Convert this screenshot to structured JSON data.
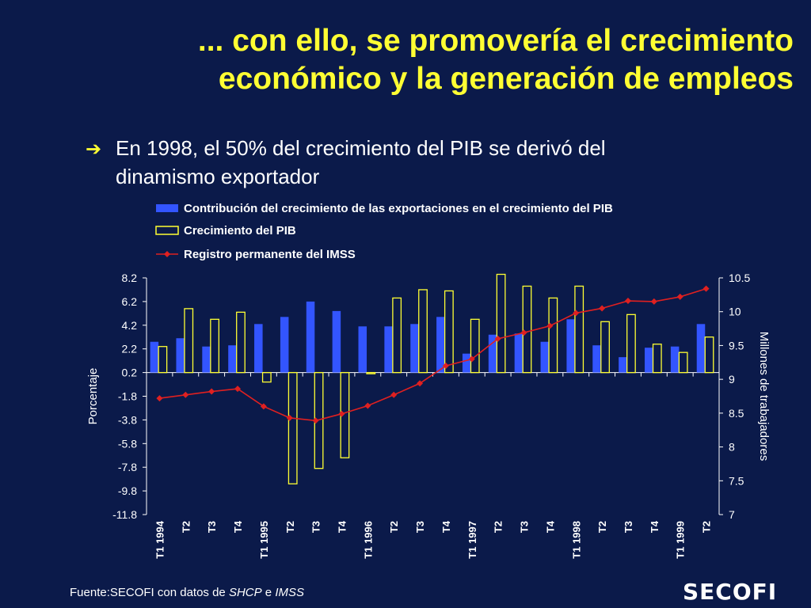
{
  "slide": {
    "title_line1": "... con ello, se promovería el crecimiento",
    "title_line2": "económico y la generación de empleos",
    "bullet_line1": "En 1998, el 50% del crecimiento del PIB se derivó del",
    "bullet_line2": "dinamismo exportador",
    "source_prefix": "Fuente:SECOFI  con datos de  ",
    "source_shcp": "SHCP",
    "source_and": " e ",
    "source_imss": "IMSS",
    "logo": "SECOFI"
  },
  "chart_data": {
    "type": "bar",
    "categories": [
      "T1 1994",
      "T2",
      "T3",
      "T4",
      "T1 1995",
      "T2",
      "T3",
      "T4",
      "T1 1996",
      "T2",
      "T3",
      "T4",
      "T1 1997",
      "T2",
      "T3",
      "T4",
      "T1 1998",
      "T2",
      "T3",
      "T4",
      "T1 1999",
      "T2"
    ],
    "series": [
      {
        "name": "Contribución del crecimiento de las exportaciones en el crecimiento del PIB",
        "kind": "bar",
        "axis": "left",
        "color": "#3355ff",
        "values": [
          2.8,
          3.1,
          2.4,
          2.5,
          4.3,
          4.9,
          6.2,
          5.4,
          4.1,
          4.1,
          4.3,
          4.9,
          1.8,
          3.4,
          3.5,
          2.8,
          4.7,
          2.5,
          1.5,
          2.3,
          2.4,
          4.3
        ]
      },
      {
        "name": "Crecimiento del PIB",
        "kind": "bar",
        "axis": "left",
        "color": "#ffff33",
        "values": [
          2.4,
          5.6,
          4.7,
          5.3,
          -0.6,
          -9.2,
          -7.9,
          -7.0,
          0.1,
          6.5,
          7.2,
          7.1,
          4.7,
          8.5,
          7.5,
          6.5,
          7.5,
          4.5,
          5.1,
          2.6,
          1.9,
          3.2
        ]
      },
      {
        "name": "Registro permanente del IMSS",
        "kind": "line",
        "axis": "right",
        "color": "#e02020",
        "values": [
          8.72,
          8.77,
          8.82,
          8.86,
          8.6,
          8.43,
          8.39,
          8.49,
          8.61,
          8.77,
          8.94,
          9.2,
          9.3,
          9.6,
          9.69,
          9.79,
          9.98,
          10.05,
          10.16,
          10.15,
          10.22,
          10.34
        ]
      }
    ],
    "left_axis": {
      "label": "Porcentaje",
      "ticks": [
        "8.2",
        "6.2",
        "4.2",
        "2.2",
        "0.2",
        "-1.8",
        "-3.8",
        "-5.8",
        "-7.8",
        "-9.8",
        "-11.8"
      ],
      "min": -11.8,
      "max": 8.2
    },
    "right_axis": {
      "label": "Millones de trabajadores",
      "ticks": [
        "10.5",
        "10",
        "9.5",
        "9",
        "8.5",
        "8",
        "7.5",
        "7"
      ],
      "min": 7,
      "max": 10.5
    },
    "legend_position": "top"
  }
}
